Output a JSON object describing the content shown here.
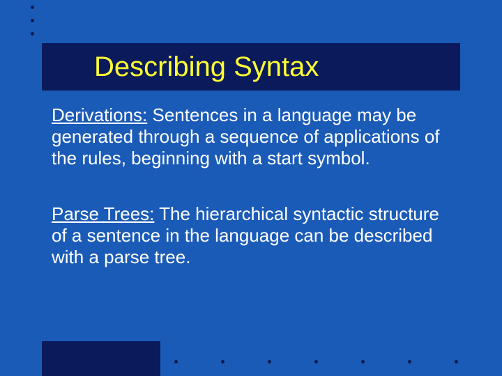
{
  "colors": {
    "slide_background": "#1b5bb8",
    "title_bar_background": "#0a1a5a",
    "title_text": "#ffff33",
    "body_text": "#ffffff",
    "accent_box": "#0a1a5a",
    "bullet_dot": "#0a1a4a"
  },
  "typography": {
    "title_fontsize": 40,
    "body_fontsize": 26,
    "font_family": "Arial"
  },
  "title": "Describing Syntax",
  "paragraphs": [
    {
      "term": "Derivations:",
      "text": "   Sentences in a language may be generated through a sequence of applications of the rules, beginning with a start symbol."
    },
    {
      "term": "Parse Trees:",
      "text": "   The hierarchical syntactic structure of a sentence in the language can be described with a parse tree."
    }
  ],
  "decorations": {
    "top_dots_count": 3,
    "bottom_dots_count": 7
  }
}
